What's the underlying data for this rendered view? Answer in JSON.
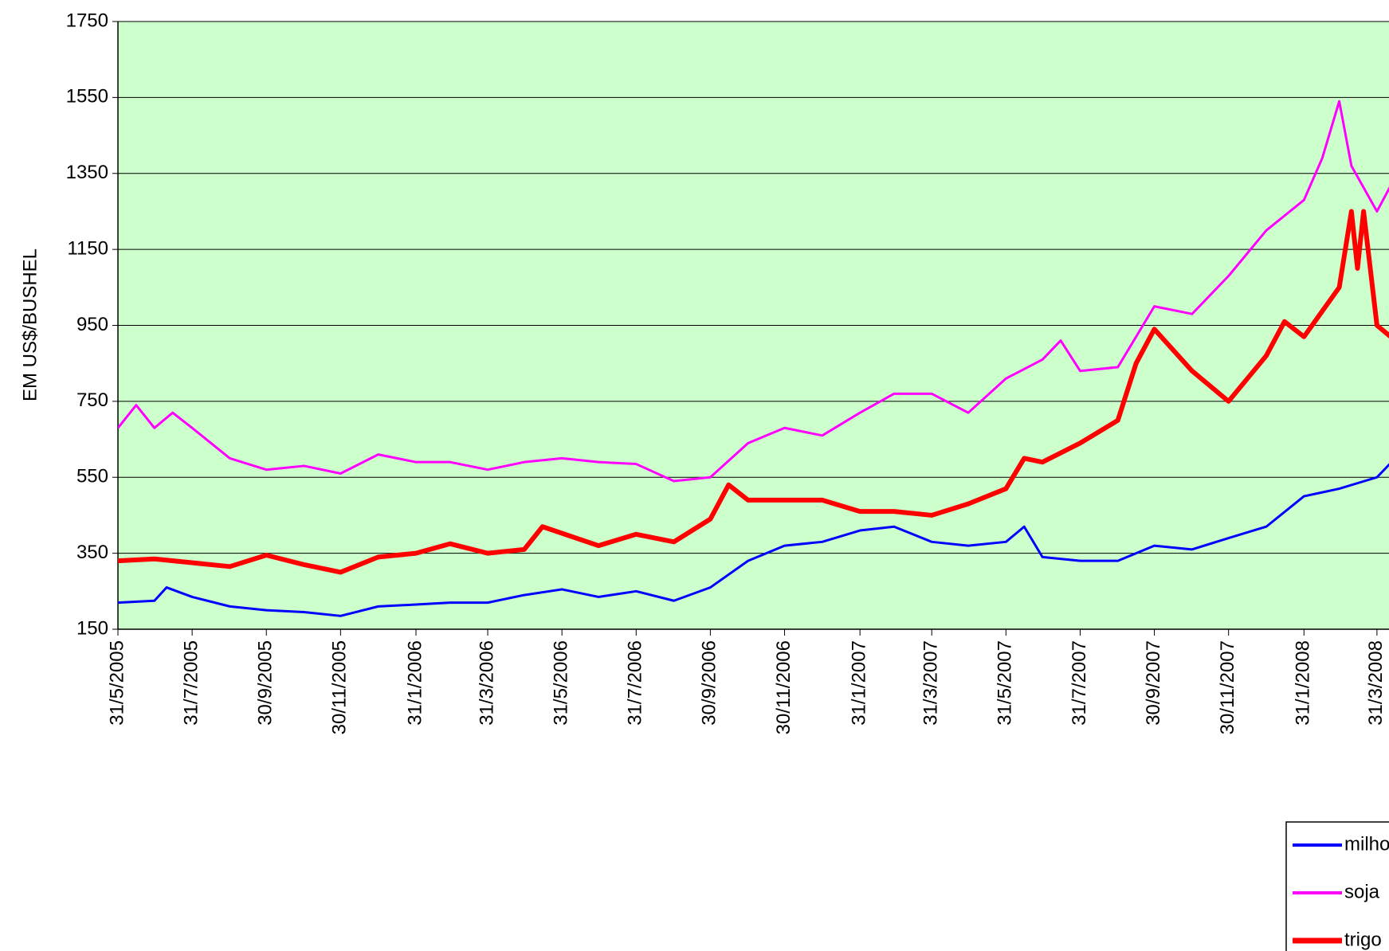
{
  "chart_data": {
    "type": "line",
    "y_label": "EM US$/BUSHEL",
    "ylim": [
      150,
      1750
    ],
    "yticks": [
      150,
      350,
      550,
      750,
      950,
      1150,
      1350,
      1550,
      1750
    ],
    "xlim": [
      "31/5/2005",
      "31/5/2008"
    ],
    "xticks": [
      "31/5/2005",
      "31/7/2005",
      "30/9/2005",
      "30/11/2005",
      "31/1/2006",
      "31/3/2006",
      "31/5/2006",
      "31/7/2006",
      "30/9/2006",
      "30/11/2006",
      "31/1/2007",
      "31/3/2007",
      "31/5/2007",
      "31/7/2007",
      "30/9/2007",
      "30/11/2007",
      "31/1/2008",
      "31/3/2008"
    ],
    "grid": true,
    "background": "#ccffcc",
    "legend": "bottom-right",
    "series": [
      {
        "name": "milho",
        "color": "#0000ff",
        "width": 3,
        "x": [
          "31/5/2005",
          "30/6/2005",
          "10/7/2005",
          "31/7/2005",
          "31/8/2005",
          "30/9/2005",
          "31/10/2005",
          "30/11/2005",
          "31/12/2005",
          "31/1/2006",
          "28/2/2006",
          "31/3/2006",
          "30/4/2006",
          "31/5/2006",
          "30/6/2006",
          "31/7/2006",
          "31/8/2006",
          "30/9/2006",
          "31/10/2006",
          "30/11/2006",
          "31/12/2006",
          "31/1/2007",
          "28/2/2007",
          "31/3/2007",
          "30/4/2007",
          "31/5/2007",
          "15/6/2007",
          "30/6/2007",
          "31/7/2007",
          "31/8/2007",
          "30/9/2007",
          "31/10/2007",
          "30/11/2007",
          "31/12/2007",
          "31/1/2008",
          "29/2/2008",
          "31/3/2008",
          "15/4/2008"
        ],
        "values": [
          220,
          225,
          260,
          235,
          210,
          200,
          195,
          185,
          210,
          215,
          220,
          220,
          240,
          255,
          235,
          250,
          225,
          260,
          330,
          370,
          380,
          410,
          420,
          380,
          370,
          380,
          420,
          340,
          330,
          330,
          370,
          360,
          390,
          420,
          500,
          520,
          550,
          600
        ]
      },
      {
        "name": "soja",
        "color": "#ff00ff",
        "width": 3,
        "x": [
          "31/5/2005",
          "15/6/2005",
          "30/6/2005",
          "15/7/2005",
          "31/7/2005",
          "31/8/2005",
          "30/9/2005",
          "31/10/2005",
          "30/11/2005",
          "31/12/2005",
          "31/1/2006",
          "28/2/2006",
          "31/3/2006",
          "30/4/2006",
          "31/5/2006",
          "30/6/2006",
          "31/7/2006",
          "31/8/2006",
          "30/9/2006",
          "31/10/2006",
          "30/11/2006",
          "31/12/2006",
          "31/1/2007",
          "28/2/2007",
          "31/3/2007",
          "30/4/2007",
          "31/5/2007",
          "30/6/2007",
          "15/7/2007",
          "31/7/2007",
          "31/8/2007",
          "30/9/2007",
          "31/10/2007",
          "30/11/2007",
          "31/12/2007",
          "31/1/2008",
          "15/2/2008",
          "29/2/2008",
          "10/3/2008",
          "31/3/2008",
          "15/4/2008"
        ],
        "values": [
          680,
          740,
          680,
          720,
          680,
          600,
          570,
          580,
          560,
          610,
          590,
          590,
          570,
          590,
          600,
          590,
          585,
          540,
          550,
          640,
          680,
          660,
          720,
          770,
          770,
          720,
          810,
          860,
          910,
          830,
          840,
          1000,
          980,
          1080,
          1200,
          1280,
          1390,
          1540,
          1370,
          1250,
          1340
        ]
      },
      {
        "name": "trigo",
        "color": "#ff0000",
        "width": 6,
        "x": [
          "31/5/2005",
          "30/6/2005",
          "31/7/2005",
          "31/8/2005",
          "30/9/2005",
          "31/10/2005",
          "30/11/2005",
          "31/12/2005",
          "31/1/2006",
          "28/2/2006",
          "31/3/2006",
          "30/4/2006",
          "15/5/2006",
          "30/6/2006",
          "31/7/2006",
          "31/8/2006",
          "30/9/2006",
          "15/10/2006",
          "31/10/2006",
          "30/11/2006",
          "31/12/2006",
          "31/1/2007",
          "28/2/2007",
          "31/3/2007",
          "30/4/2007",
          "31/5/2007",
          "15/6/2007",
          "30/6/2007",
          "31/7/2007",
          "31/8/2007",
          "15/9/2007",
          "30/9/2007",
          "31/10/2007",
          "30/11/2007",
          "31/12/2007",
          "15/1/2008",
          "31/1/2008",
          "29/2/2008",
          "10/3/2008",
          "15/3/2008",
          "20/3/2008",
          "31/3/2008",
          "15/4/2008"
        ],
        "values": [
          330,
          335,
          325,
          315,
          345,
          320,
          300,
          340,
          350,
          375,
          350,
          360,
          420,
          370,
          400,
          380,
          440,
          530,
          490,
          490,
          490,
          460,
          460,
          450,
          480,
          520,
          600,
          590,
          640,
          700,
          850,
          940,
          830,
          750,
          870,
          960,
          920,
          1050,
          1250,
          1100,
          1250,
          950,
          910
        ]
      }
    ]
  }
}
